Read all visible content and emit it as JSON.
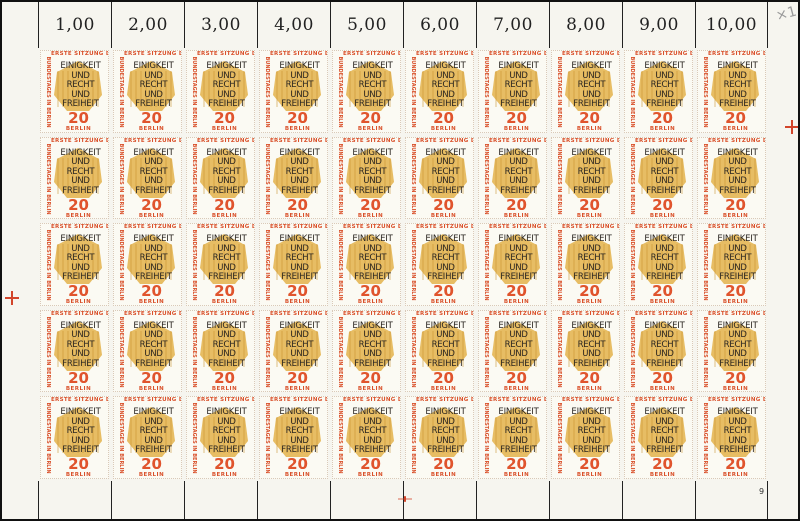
{
  "sheet": {
    "column_values": [
      "1,00",
      "2,00",
      "3,00",
      "4,00",
      "5,00",
      "6,00",
      "7,00",
      "8,00",
      "9,00",
      "10,00"
    ],
    "rows": 5,
    "columns": 10,
    "sheet_number": "9",
    "annotation": "×1"
  },
  "stamp": {
    "top_text": "ERSTE SITZUNG DES",
    "side_text": "BUNDESTAGES IN BERLIN",
    "motto_lines": [
      "EINIGKEIT",
      "UND",
      "RECHT",
      "UND",
      "FREIHEIT"
    ],
    "value": "20",
    "city": "BERLIN"
  },
  "colors": {
    "orange_red": "#e0542d",
    "eagle_gold": "#e3b24a",
    "paper": "#f6f5ef"
  }
}
